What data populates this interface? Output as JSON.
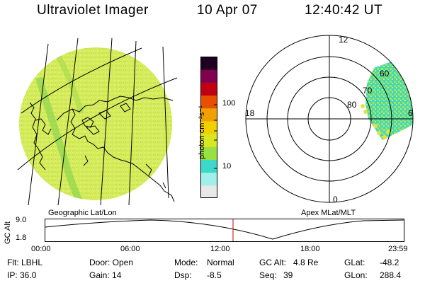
{
  "header": {
    "instrument": "Ultraviolet Imager",
    "date": "10 Apr 07",
    "time": "12:40:42 UT"
  },
  "colorbar": {
    "unit_label": "photon cm⁻²s⁻¹",
    "tick_100": "100",
    "tick_10": "10",
    "colors": [
      "#e8e8e8",
      "#9ef0e8",
      "#3cd8c8",
      "#9ae040",
      "#d8e820",
      "#f0d000",
      "#f0a000",
      "#e85000",
      "#c00010",
      "#800050",
      "#200020"
    ]
  },
  "geo_panel": {
    "caption": "Geographic Lat/Lon",
    "disk_color": "#d6ec5c"
  },
  "polar_panel": {
    "caption": "Apex MLat/MLT",
    "mlt_labels": {
      "top": "12",
      "left": "18",
      "right": "6",
      "bottom": "0"
    },
    "lat_labels": [
      "60",
      "70",
      "80"
    ]
  },
  "altitude_plot": {
    "ylabel": "GC Alt",
    "y_top": "9.0",
    "y_bottom": "1.8",
    "x_ticks": [
      "00:00",
      "06:00",
      "12:00",
      "18:00",
      "23:59"
    ],
    "marker_color": "#cc0000"
  },
  "info": {
    "filter": "Flt: LBHL",
    "ip": "IP: 36.0",
    "door": "Door: Open",
    "gain": "Gain: 14",
    "mode_label": "Mode:",
    "mode_value": "Normal",
    "dsp_label": "Dsp:",
    "dsp_value": "-8.5",
    "gcalt_label": "GC Alt:",
    "gcalt_value": "4.8 Re",
    "seq_label": "Seq:",
    "seq_value": "39",
    "glat_label": "GLat:",
    "glat_value": "-48.2",
    "glon_label": "GLon:",
    "glon_value": "288.4"
  }
}
